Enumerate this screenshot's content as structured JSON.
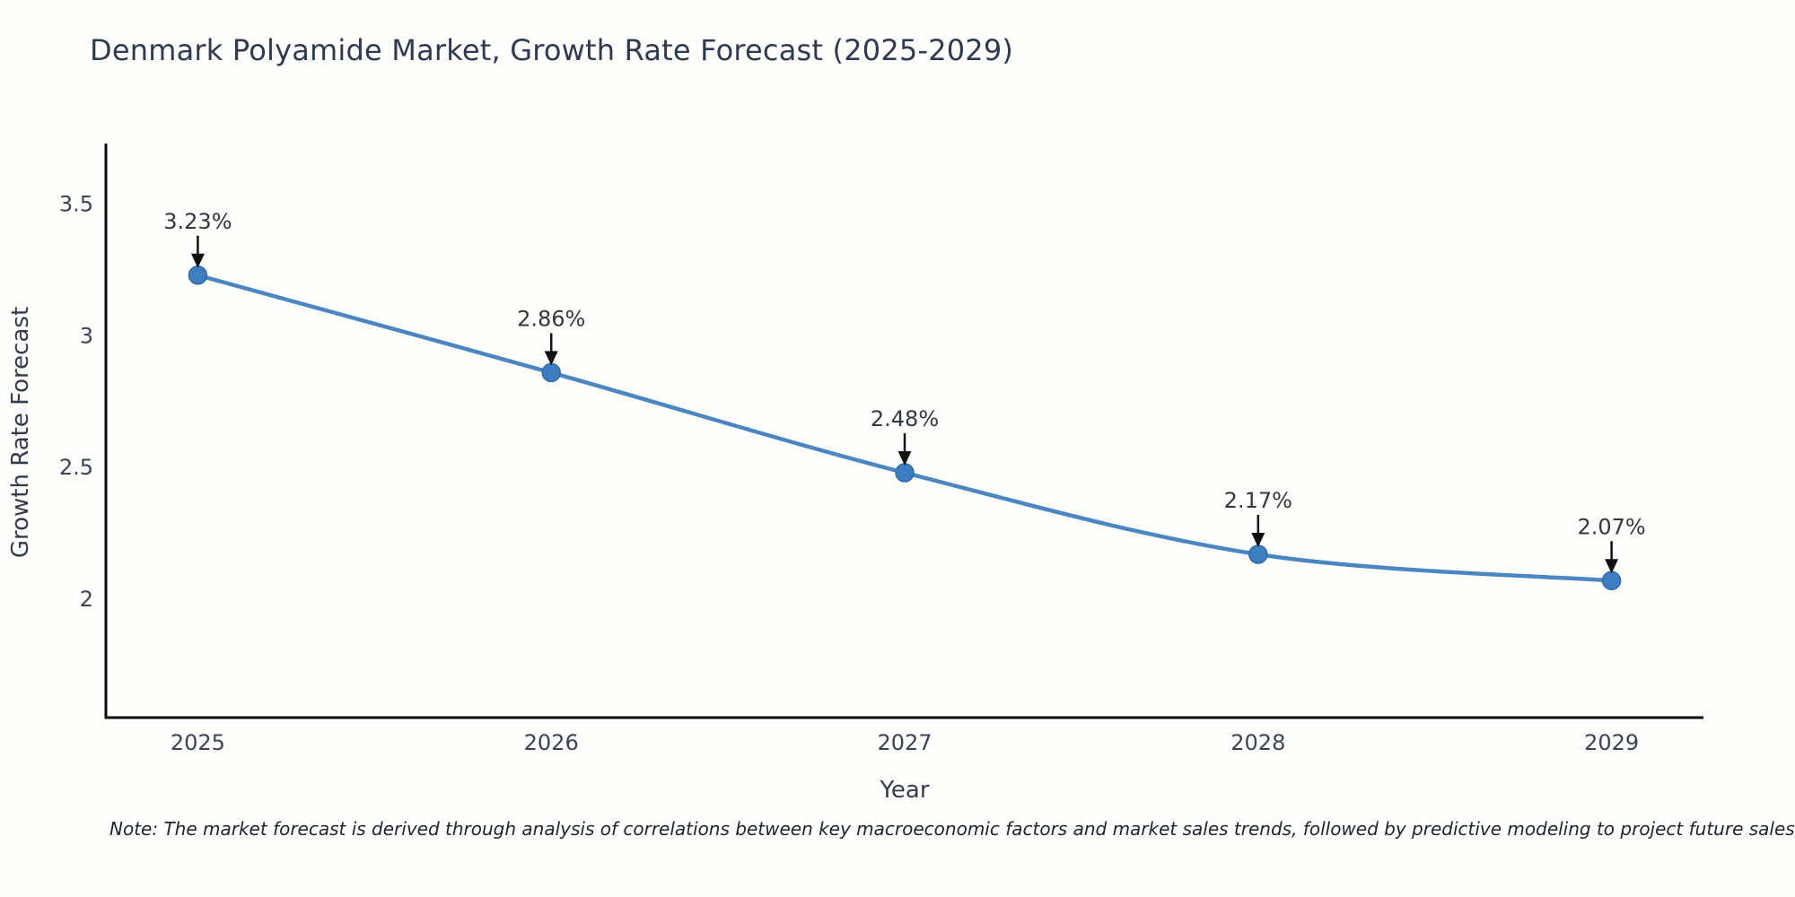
{
  "page": {
    "background": "#fefefc"
  },
  "note": {
    "text": "Note: The market forecast is derived through analysis of correlations between key macroeconomic factors and market sales trends, followed by predictive modeling to project future sales"
  },
  "colors": {
    "title_text": "#2e3a54",
    "axis_spine": "#0b0b0b",
    "tick_text": "#3a4357",
    "annotation_text": "#333740",
    "annotation_arrow": "#111111",
    "line": "#4a86c2",
    "marker": "#3d7ec2",
    "marker_edge": "#2f6ba8"
  },
  "chart_data": {
    "type": "line",
    "title": "Denmark Polyamide Market, Growth Rate Forecast (2025-2029)",
    "xlabel": "Year",
    "ylabel": "Growth Rate Forecast",
    "x": [
      2025,
      2026,
      2027,
      2028,
      2029
    ],
    "series": [
      {
        "name": "Growth Rate Forecast",
        "values": [
          3.23,
          2.86,
          2.48,
          2.17,
          2.07
        ]
      }
    ],
    "point_labels": [
      "3.23%",
      "2.86%",
      "2.48%",
      "2.17%",
      "2.07%"
    ],
    "xticks": [
      2025,
      2026,
      2027,
      2028,
      2029
    ],
    "yticks": [
      2,
      2.5,
      3,
      3.5
    ],
    "ytick_labels": [
      "2",
      "2.5",
      "3",
      "3.5"
    ],
    "xlim": [
      2024.74,
      2029.26
    ],
    "ylim": [
      1.55,
      3.73
    ],
    "grid": false,
    "legend": "none",
    "annotations_have_arrows": true
  }
}
